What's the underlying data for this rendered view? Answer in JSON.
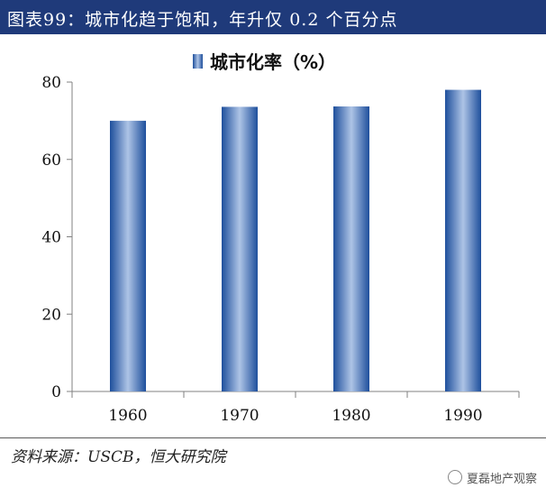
{
  "header": {
    "title": "图表99：城市化趋于饱和，年升仅 0.2 个百分点"
  },
  "chart_data": {
    "type": "bar",
    "categories": [
      "1960",
      "1970",
      "1980",
      "1990"
    ],
    "series": [
      {
        "name": "城市化率（%）",
        "values": [
          70.0,
          73.6,
          73.7,
          78.0
        ]
      }
    ],
    "ylim": [
      0,
      80
    ],
    "yticks": [
      0,
      20,
      40,
      60,
      80
    ],
    "xlabel": "",
    "ylabel": "",
    "legend_position": "top-center",
    "grid": false,
    "colors": {
      "bar_dark": "#1e4f9c",
      "bar_light": "#aec4e6",
      "axis": "#808080"
    }
  },
  "footer": {
    "source": "资料来源：USCB，恒大研究院",
    "watermark": "夏磊地产观察"
  },
  "icons": {
    "watermark_icon": "wechat-logo-icon"
  }
}
